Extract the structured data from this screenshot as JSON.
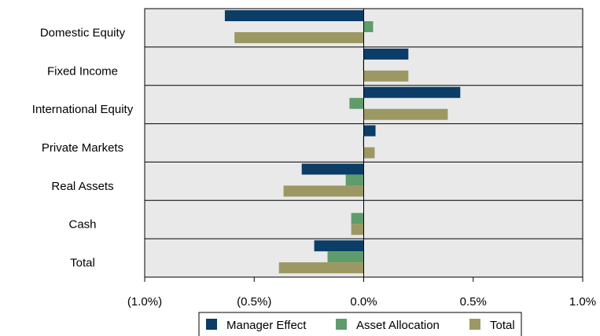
{
  "chart_data": {
    "type": "hbar",
    "categories": [
      "Domestic Equity",
      "Fixed Income",
      "International Equity",
      "Private Markets",
      "Real Assets",
      "Cash",
      "Total"
    ],
    "series": [
      {
        "name": "Manager Effect",
        "color": "#0b3d66",
        "values": [
          -0.634,
          0.204,
          0.441,
          0.054,
          -0.283,
          0,
          -0.226
        ]
      },
      {
        "name": "Asset Allocation",
        "color": "#5e9c6c",
        "values": [
          0.043,
          -0.003,
          -0.065,
          -0.003,
          -0.082,
          -0.057,
          -0.165
        ]
      },
      {
        "name": "Total",
        "color": "#9c9863",
        "values": [
          -0.59,
          0.204,
          0.384,
          0.05,
          -0.366,
          -0.057,
          -0.387
        ]
      }
    ],
    "xlim": [
      -1.0,
      1.0
    ],
    "xticks": [
      {
        "value": -1.0,
        "label": "(1.0%)"
      },
      {
        "value": -0.5,
        "label": "(0.5%)"
      },
      {
        "value": 0.0,
        "label": "0.0%"
      },
      {
        "value": 0.5,
        "label": "0.5%"
      },
      {
        "value": 1.0,
        "label": "1.0%"
      }
    ],
    "negative_label_color": "#ff0000",
    "legend": "bottom"
  }
}
